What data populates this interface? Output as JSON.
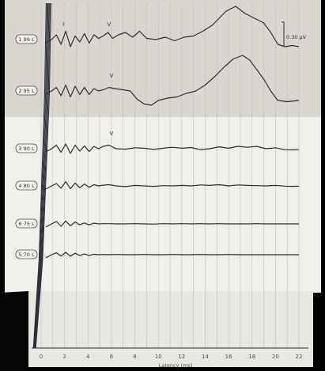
{
  "chart_data": {
    "type": "line",
    "xlabel": "Latency (ms)",
    "xlim": [
      0,
      22
    ],
    "x_ticks": [
      0,
      2,
      4,
      6,
      8,
      10,
      12,
      14,
      16,
      18,
      20,
      22
    ],
    "scale_bar": "0.30 µV",
    "wave_markers": [
      "I",
      "V"
    ],
    "series": [
      {
        "name": "1 99 L",
        "marker_times": [
          1.9,
          5.8
        ],
        "x": [
          0.9,
          1.3,
          1.7,
          2.1,
          2.5,
          2.9,
          3.3,
          3.7,
          4.1,
          4.5,
          4.9,
          5.3,
          5.7,
          6.1,
          6.6,
          7.2,
          7.8,
          8.4,
          9.0,
          9.8,
          10.6,
          11.4,
          12.2,
          13.0,
          13.8,
          14.6,
          15.2,
          15.8,
          16.6,
          17.4,
          18.2,
          19.0,
          19.6,
          20.2,
          20.8,
          21.4,
          22.0
        ],
        "y": [
          0.0,
          0.2,
          -0.2,
          0.35,
          -0.3,
          0.15,
          -0.1,
          0.25,
          -0.15,
          0.2,
          0.05,
          0.15,
          0.3,
          0.05,
          0.2,
          0.3,
          0.1,
          0.35,
          0.05,
          0.0,
          0.1,
          -0.05,
          0.1,
          0.15,
          0.35,
          0.6,
          0.9,
          1.2,
          1.4,
          1.1,
          0.9,
          0.7,
          0.3,
          -0.2,
          -0.3,
          -0.25,
          -0.3
        ]
      },
      {
        "name": "2 95 L",
        "marker_times": [
          6.0
        ],
        "x": [
          0.9,
          1.3,
          1.7,
          2.1,
          2.5,
          2.9,
          3.3,
          3.7,
          4.1,
          4.5,
          4.9,
          5.3,
          5.8,
          6.3,
          7.0,
          7.6,
          8.2,
          8.8,
          9.4,
          10.0,
          10.8,
          11.6,
          12.4,
          13.2,
          14.0,
          14.8,
          15.6,
          16.4,
          17.2,
          17.8,
          18.4,
          19.0,
          19.6,
          20.2,
          21.0,
          22.0
        ],
        "y": [
          0.0,
          0.15,
          -0.2,
          0.25,
          -0.25,
          0.2,
          -0.15,
          0.15,
          -0.15,
          0.1,
          0.0,
          0.05,
          0.15,
          0.1,
          0.05,
          0.0,
          -0.35,
          -0.55,
          -0.6,
          -0.4,
          -0.3,
          -0.25,
          -0.1,
          0.0,
          0.25,
          0.6,
          1.0,
          1.35,
          1.5,
          1.3,
          0.9,
          0.5,
          0.0,
          -0.4,
          -0.45,
          -0.4
        ]
      },
      {
        "name": "3 90 L",
        "marker_times": [
          6.0
        ],
        "x": [
          0.9,
          1.3,
          1.7,
          2.1,
          2.5,
          2.9,
          3.3,
          3.7,
          4.1,
          4.5,
          4.9,
          5.3,
          5.8,
          6.4,
          7.2,
          8.0,
          8.8,
          9.6,
          10.4,
          11.2,
          12.0,
          12.8,
          13.6,
          14.4,
          15.2,
          16.0,
          16.8,
          17.6,
          18.4,
          19.2,
          20.0,
          20.8,
          21.5,
          22.0
        ],
        "y": [
          0.0,
          0.15,
          -0.15,
          0.2,
          -0.2,
          0.15,
          -0.1,
          0.12,
          -0.12,
          0.1,
          0.0,
          0.1,
          0.15,
          0.0,
          -0.02,
          0.04,
          0.02,
          -0.03,
          0.02,
          0.06,
          0.02,
          0.05,
          -0.04,
          0.0,
          0.08,
          0.02,
          0.1,
          0.06,
          0.1,
          0.0,
          0.04,
          -0.04,
          -0.05,
          -0.04
        ]
      },
      {
        "name": "4 80 L",
        "marker_times": [],
        "x": [
          0.9,
          1.3,
          1.7,
          2.1,
          2.5,
          2.9,
          3.3,
          3.7,
          4.1,
          4.5,
          4.9,
          5.3,
          5.8,
          6.4,
          7.2,
          8.0,
          8.8,
          9.6,
          10.4,
          11.2,
          12.0,
          12.8,
          13.6,
          14.4,
          15.2,
          16.0,
          16.8,
          17.6,
          18.4,
          19.2,
          20.0,
          20.8,
          21.5,
          22.0
        ],
        "y": [
          0.0,
          0.1,
          -0.1,
          0.18,
          -0.12,
          0.12,
          -0.08,
          0.08,
          -0.06,
          0.05,
          0.0,
          0.03,
          0.05,
          0.0,
          -0.03,
          0.02,
          0.0,
          -0.02,
          0.01,
          0.0,
          0.02,
          0.0,
          0.04,
          0.02,
          0.05,
          0.0,
          0.04,
          0.02,
          0.01,
          0.0,
          0.02,
          -0.01,
          -0.02,
          -0.01
        ]
      },
      {
        "name": "6 75 L",
        "marker_times": [],
        "x": [
          0.9,
          1.3,
          1.7,
          2.1,
          2.5,
          2.9,
          3.3,
          3.7,
          4.1,
          4.5,
          4.9,
          5.3,
          5.8,
          6.4,
          7.2,
          8.0,
          8.8,
          9.6,
          10.4,
          11.2,
          12.0,
          12.8,
          13.6,
          14.4,
          15.2,
          16.0,
          16.8,
          17.6,
          18.4,
          19.2,
          20.0,
          20.8,
          21.5,
          22.0
        ],
        "y": [
          0.0,
          0.1,
          -0.1,
          0.12,
          -0.08,
          0.08,
          -0.04,
          0.04,
          -0.04,
          0.03,
          0.0,
          0.01,
          0.01,
          0.0,
          0.0,
          0.01,
          0.0,
          -0.01,
          0.01,
          0.0,
          0.01,
          0.0,
          0.01,
          0.0,
          0.01,
          0.0,
          0.0,
          0.0,
          0.01,
          0.0,
          0.0,
          0.0,
          0.0,
          0.0
        ]
      },
      {
        "name": "5 70 L",
        "marker_times": [],
        "x": [
          0.9,
          1.3,
          1.7,
          2.1,
          2.5,
          2.9,
          3.3,
          3.7,
          4.1,
          4.5,
          4.9,
          5.3,
          5.8,
          6.4,
          7.2,
          8.0,
          8.8,
          9.6,
          10.4,
          11.2,
          12.0,
          12.8,
          13.6,
          14.4,
          15.2,
          16.0,
          16.8,
          17.6,
          18.4,
          19.2,
          20.0,
          20.8,
          21.5,
          22.0
        ],
        "y": [
          0.0,
          0.08,
          -0.06,
          0.1,
          -0.06,
          0.06,
          -0.03,
          0.03,
          -0.03,
          0.02,
          0.0,
          0.01,
          0.0,
          0.01,
          0.0,
          0.0,
          0.01,
          0.0,
          0.0,
          0.01,
          0.0,
          0.0,
          0.01,
          0.0,
          0.0,
          0.01,
          0.0,
          0.0,
          0.0,
          0.0,
          0.0,
          0.0,
          0.0,
          0.0
        ]
      }
    ]
  }
}
